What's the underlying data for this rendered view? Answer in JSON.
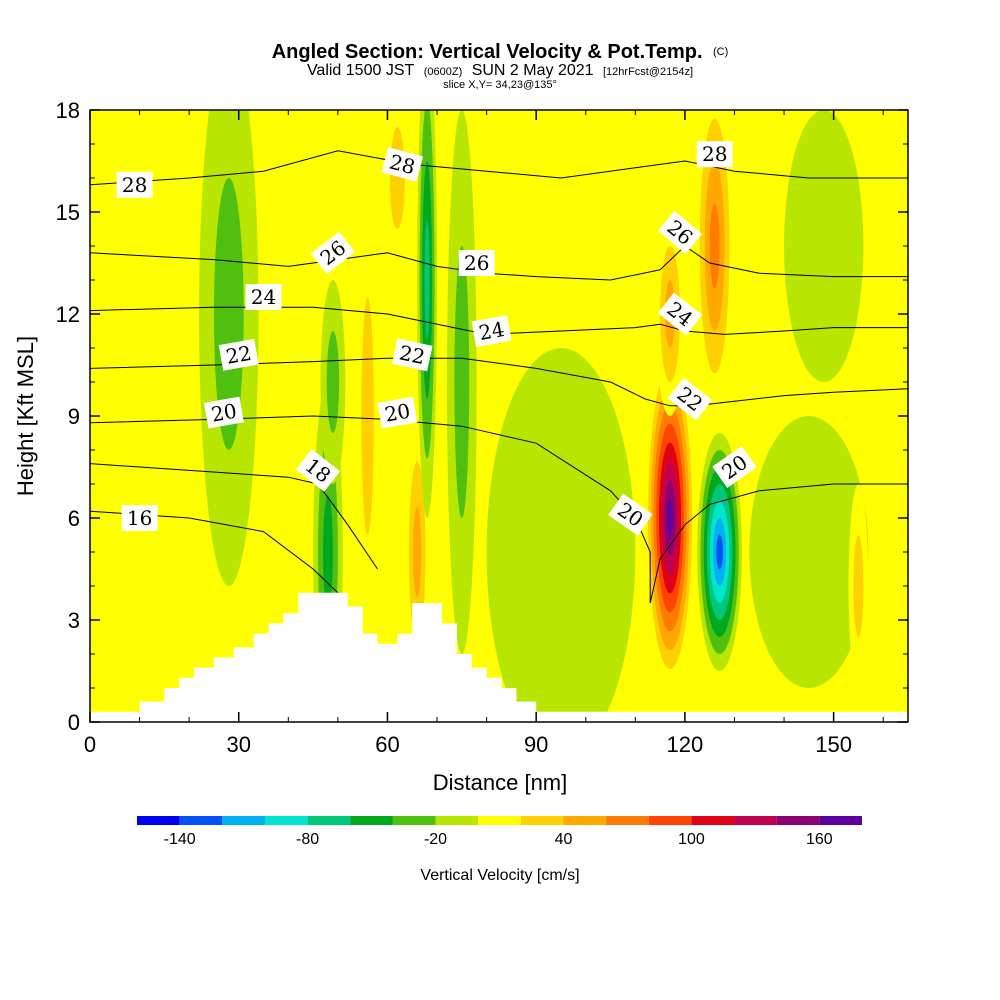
{
  "chart_data": {
    "type": "heatmap",
    "title": "Angled Section: Vertical Velocity & Pot.Temp.",
    "title_unit": "(C)",
    "subtitle_parts": [
      "Valid 1500 JST",
      "(0600Z)",
      "SUN 2 May 2021",
      "[12hrFcst@2154z]"
    ],
    "subsubtitle": "slice X,Y= 34,23@135°",
    "xlabel": "Distance [nm]",
    "ylabel": "Height [Kft MSL]",
    "xlim": [
      0,
      165
    ],
    "ylim": [
      0,
      18
    ],
    "x_ticks": [
      0,
      30,
      60,
      90,
      120,
      150
    ],
    "y_ticks": [
      0,
      3,
      6,
      9,
      12,
      15,
      18
    ],
    "grid": false,
    "colorbar": {
      "label": "Vertical Velocity [cm/s]",
      "levels": [
        -160,
        -140,
        -120,
        -100,
        -80,
        -60,
        -40,
        -20,
        0,
        20,
        40,
        60,
        80,
        100,
        120,
        140,
        160,
        180
      ],
      "tick_labels": [
        "-140",
        "-80",
        "-20",
        "40",
        "100",
        "160"
      ],
      "tick_values": [
        -140,
        -80,
        -20,
        40,
        100,
        160
      ],
      "colors": [
        "#0000ee",
        "#0050f5",
        "#00b0f0",
        "#00e6cc",
        "#00c878",
        "#00a820",
        "#50c010",
        "#b8e600",
        "#ffff00",
        "#ffd000",
        "#ffa800",
        "#ff7c00",
        "#ff4400",
        "#e00018",
        "#c00050",
        "#8c0070",
        "#5c00a0"
      ]
    },
    "terrain": [
      [
        0,
        0.3
      ],
      [
        10,
        0.3
      ],
      [
        10,
        0.6
      ],
      [
        15,
        0.6
      ],
      [
        15,
        1.0
      ],
      [
        18,
        1.0
      ],
      [
        18,
        1.3
      ],
      [
        21,
        1.3
      ],
      [
        21,
        1.6
      ],
      [
        25,
        1.6
      ],
      [
        25,
        1.9
      ],
      [
        29,
        1.9
      ],
      [
        29,
        2.2
      ],
      [
        33,
        2.2
      ],
      [
        33,
        2.6
      ],
      [
        36,
        2.6
      ],
      [
        36,
        2.9
      ],
      [
        39,
        2.9
      ],
      [
        39,
        3.2
      ],
      [
        42,
        3.2
      ],
      [
        42,
        3.8
      ],
      [
        52,
        3.8
      ],
      [
        52,
        3.4
      ],
      [
        55,
        3.4
      ],
      [
        55,
        2.6
      ],
      [
        58,
        2.6
      ],
      [
        58,
        2.3
      ],
      [
        62,
        2.3
      ],
      [
        62,
        2.6
      ],
      [
        65,
        2.6
      ],
      [
        65,
        3.5
      ],
      [
        71,
        3.5
      ],
      [
        71,
        2.9
      ],
      [
        74,
        2.9
      ],
      [
        74,
        2.0
      ],
      [
        77,
        2.0
      ],
      [
        77,
        1.6
      ],
      [
        80,
        1.6
      ],
      [
        80,
        1.3
      ],
      [
        83,
        1.3
      ],
      [
        83,
        1.0
      ],
      [
        86,
        1.0
      ],
      [
        86,
        0.6
      ],
      [
        90,
        0.6
      ],
      [
        90,
        0.3
      ],
      [
        165,
        0.3
      ]
    ],
    "theta_lines": [
      {
        "value": 16,
        "points": [
          [
            0,
            6.2
          ],
          [
            20,
            6.0
          ],
          [
            35,
            5.6
          ],
          [
            45,
            4.5
          ],
          [
            50,
            3.8
          ]
        ]
      },
      {
        "value": 18,
        "points": [
          [
            0,
            7.6
          ],
          [
            20,
            7.4
          ],
          [
            40,
            7.2
          ],
          [
            46,
            7.0
          ],
          [
            52,
            5.8
          ],
          [
            58,
            4.5
          ]
        ]
      },
      {
        "value": 20,
        "points": [
          [
            0,
            8.8
          ],
          [
            25,
            8.9
          ],
          [
            45,
            9.0
          ],
          [
            60,
            8.9
          ],
          [
            75,
            8.7
          ],
          [
            90,
            8.2
          ],
          [
            105,
            6.8
          ],
          [
            110,
            6.0
          ],
          [
            113,
            5.0
          ],
          [
            113,
            3.5
          ],
          [
            115,
            4.8
          ],
          [
            120,
            5.8
          ],
          [
            125,
            6.4
          ],
          [
            135,
            6.8
          ],
          [
            150,
            7.0
          ],
          [
            165,
            7.0
          ]
        ]
      },
      {
        "value": 22,
        "points": [
          [
            0,
            10.4
          ],
          [
            25,
            10.5
          ],
          [
            45,
            10.6
          ],
          [
            60,
            10.7
          ],
          [
            75,
            10.7
          ],
          [
            90,
            10.4
          ],
          [
            105,
            10.0
          ],
          [
            112,
            9.5
          ],
          [
            117,
            9.3
          ],
          [
            122,
            9.3
          ],
          [
            128,
            9.4
          ],
          [
            140,
            9.6
          ],
          [
            150,
            9.7
          ],
          [
            165,
            9.8
          ]
        ]
      },
      {
        "value": 24,
        "points": [
          [
            0,
            12.1
          ],
          [
            25,
            12.2
          ],
          [
            45,
            12.2
          ],
          [
            60,
            12.0
          ],
          [
            80,
            11.4
          ],
          [
            95,
            11.5
          ],
          [
            110,
            11.6
          ],
          [
            115,
            11.7
          ],
          [
            120,
            11.5
          ],
          [
            128,
            11.4
          ],
          [
            140,
            11.5
          ],
          [
            150,
            11.6
          ],
          [
            165,
            11.6
          ]
        ]
      },
      {
        "value": 26,
        "points": [
          [
            0,
            13.8
          ],
          [
            25,
            13.6
          ],
          [
            40,
            13.4
          ],
          [
            50,
            13.6
          ],
          [
            60,
            13.8
          ],
          [
            70,
            13.4
          ],
          [
            80,
            13.2
          ],
          [
            90,
            13.1
          ],
          [
            105,
            13.0
          ],
          [
            115,
            13.3
          ],
          [
            120,
            14.0
          ],
          [
            125,
            13.5
          ],
          [
            135,
            13.2
          ],
          [
            150,
            13.1
          ],
          [
            165,
            13.1
          ]
        ]
      },
      {
        "value": 28,
        "points": [
          [
            0,
            15.8
          ],
          [
            20,
            16.0
          ],
          [
            35,
            16.2
          ],
          [
            50,
            16.8
          ],
          [
            65,
            16.4
          ],
          [
            80,
            16.2
          ],
          [
            95,
            16.0
          ],
          [
            110,
            16.3
          ],
          [
            120,
            16.5
          ],
          [
            130,
            16.2
          ],
          [
            145,
            16.0
          ],
          [
            165,
            16.0
          ]
        ]
      }
    ],
    "contour_labels": [
      {
        "text": "28",
        "x": 9,
        "y": 15.8,
        "angle": 0
      },
      {
        "text": "28",
        "x": 63,
        "y": 16.4,
        "angle": 15
      },
      {
        "text": "28",
        "x": 126,
        "y": 16.7,
        "angle": 0
      },
      {
        "text": "26",
        "x": 49,
        "y": 13.8,
        "angle": -38
      },
      {
        "text": "26",
        "x": 78,
        "y": 13.5,
        "angle": 0
      },
      {
        "text": "26",
        "x": 119,
        "y": 14.4,
        "angle": 40
      },
      {
        "text": "24",
        "x": 35,
        "y": 12.5,
        "angle": 0
      },
      {
        "text": "24",
        "x": 81,
        "y": 11.5,
        "angle": -10
      },
      {
        "text": "24",
        "x": 119,
        "y": 12.0,
        "angle": 38
      },
      {
        "text": "22",
        "x": 30,
        "y": 10.8,
        "angle": -10
      },
      {
        "text": "22",
        "x": 65,
        "y": 10.8,
        "angle": 12
      },
      {
        "text": "22",
        "x": 121,
        "y": 9.5,
        "angle": 38
      },
      {
        "text": "20",
        "x": 27,
        "y": 9.1,
        "angle": -10
      },
      {
        "text": "20",
        "x": 62,
        "y": 9.1,
        "angle": -10
      },
      {
        "text": "20",
        "x": 109,
        "y": 6.1,
        "angle": 35
      },
      {
        "text": "20",
        "x": 130,
        "y": 7.5,
        "angle": -35
      },
      {
        "text": "18",
        "x": 46,
        "y": 7.4,
        "angle": 38
      },
      {
        "text": "16",
        "x": 10,
        "y": 6.0,
        "angle": 0
      }
    ],
    "velocity_features": [
      {
        "x": 7,
        "y": 9,
        "rx": 12,
        "ry": 11,
        "value": 10
      },
      {
        "x": 28,
        "y": 12,
        "rx": 6,
        "ry": 8,
        "value": -30
      },
      {
        "x": 48,
        "y": 5,
        "rx": 3,
        "ry": 5,
        "value": -60
      },
      {
        "x": 49,
        "y": 10,
        "rx": 2.5,
        "ry": 3,
        "value": -40
      },
      {
        "x": 56,
        "y": 9,
        "rx": 2.5,
        "ry": 7,
        "value": 30
      },
      {
        "x": 66,
        "y": 5,
        "rx": 2.5,
        "ry": 4,
        "value": 60
      },
      {
        "x": 68,
        "y": 13,
        "rx": 2,
        "ry": 7,
        "value": -80
      },
      {
        "x": 62,
        "y": 16,
        "rx": 3,
        "ry": 3,
        "value": 30
      },
      {
        "x": 75,
        "y": 10,
        "rx": 3,
        "ry": 8,
        "value": -30
      },
      {
        "x": 95,
        "y": 5,
        "rx": 15,
        "ry": 6,
        "value": -20
      },
      {
        "x": 105,
        "y": 16,
        "rx": 12,
        "ry": 5,
        "value": 20
      },
      {
        "x": 117,
        "y": 6,
        "rx": 5,
        "ry": 5,
        "value": 170
      },
      {
        "x": 117,
        "y": 12,
        "rx": 3,
        "ry": 3,
        "value": 60
      },
      {
        "x": 127,
        "y": 5,
        "rx": 4.5,
        "ry": 3.5,
        "value": -130
      },
      {
        "x": 126,
        "y": 14,
        "rx": 4,
        "ry": 5,
        "value": 80
      },
      {
        "x": 145,
        "y": 5,
        "rx": 12,
        "ry": 4,
        "value": -20
      },
      {
        "x": 155,
        "y": 4,
        "rx": 2,
        "ry": 3,
        "value": 30
      },
      {
        "x": 148,
        "y": 14,
        "rx": 8,
        "ry": 4,
        "value": -10
      }
    ]
  }
}
